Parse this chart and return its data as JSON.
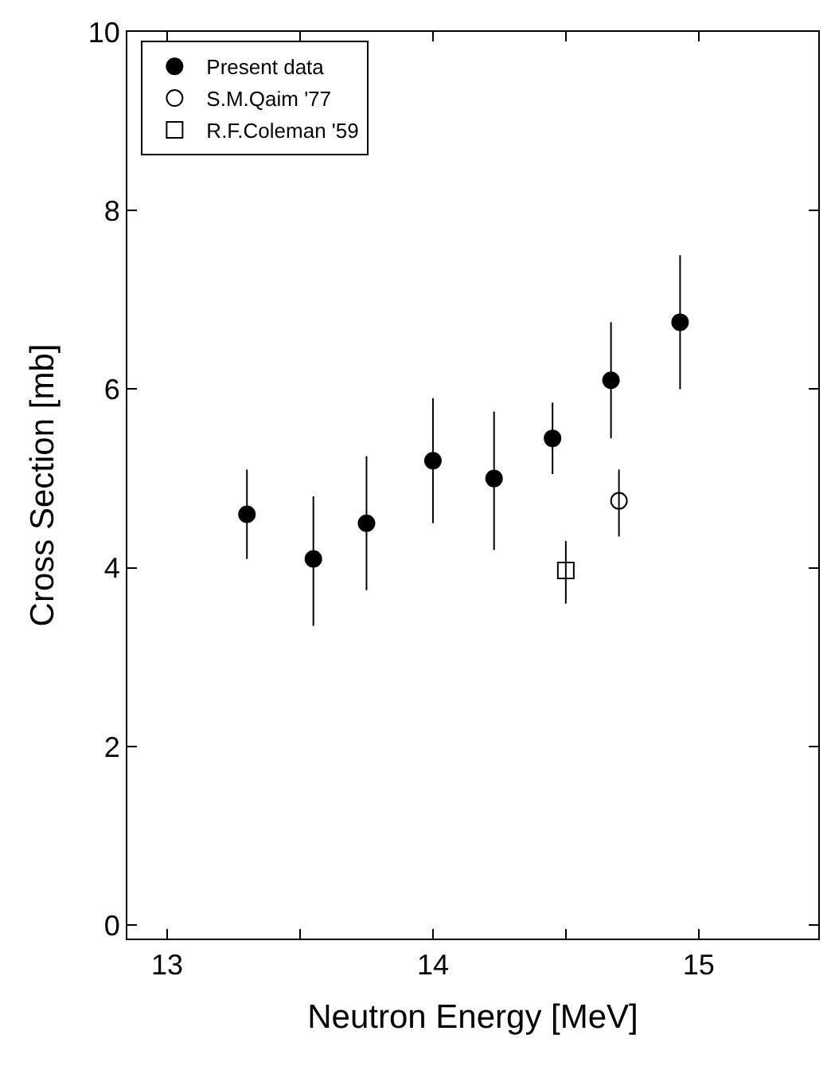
{
  "chart_data": {
    "type": "scatter",
    "xlabel": "Neutron Energy [MeV]",
    "ylabel": "Cross Section [mb]",
    "xlim": [
      12.85,
      15.45
    ],
    "xticks": [
      13,
      {
        "value": 13.5,
        "label": null
      },
      14,
      {
        "value": 14.5,
        "label": null
      },
      15
    ],
    "ylim": [
      -0.15,
      10
    ],
    "yticks": [
      0,
      2,
      4,
      6,
      8,
      10
    ],
    "legend": "top left",
    "series": [
      {
        "name": "Present data",
        "color": "#000000",
        "marker": "circle",
        "x": [
          13.3,
          13.55,
          13.75,
          14.0,
          14.23,
          14.45,
          14.67,
          14.93
        ],
        "values": [
          4.6,
          4.1,
          4.5,
          5.2,
          5.0,
          5.45,
          6.1,
          6.75
        ],
        "errors": [
          [
            4.1,
            5.1
          ],
          [
            3.35,
            4.8
          ],
          [
            3.75,
            5.25
          ],
          [
            4.5,
            5.9
          ],
          [
            4.2,
            5.75
          ],
          [
            5.05,
            5.85
          ],
          [
            5.45,
            6.75
          ],
          [
            6.0,
            7.5
          ]
        ]
      },
      {
        "name": "S.M.Qaim '77",
        "color": "#000000",
        "marker": "circle-open",
        "x": [
          14.7
        ],
        "values": [
          4.75
        ],
        "errors": [
          [
            4.35,
            5.1
          ]
        ]
      },
      {
        "name": "R.F.Coleman '59",
        "color": "#000000",
        "marker": "square-open",
        "x": [
          14.5
        ],
        "values": [
          3.97
        ],
        "errors": [
          [
            3.6,
            4.3
          ]
        ]
      }
    ]
  }
}
